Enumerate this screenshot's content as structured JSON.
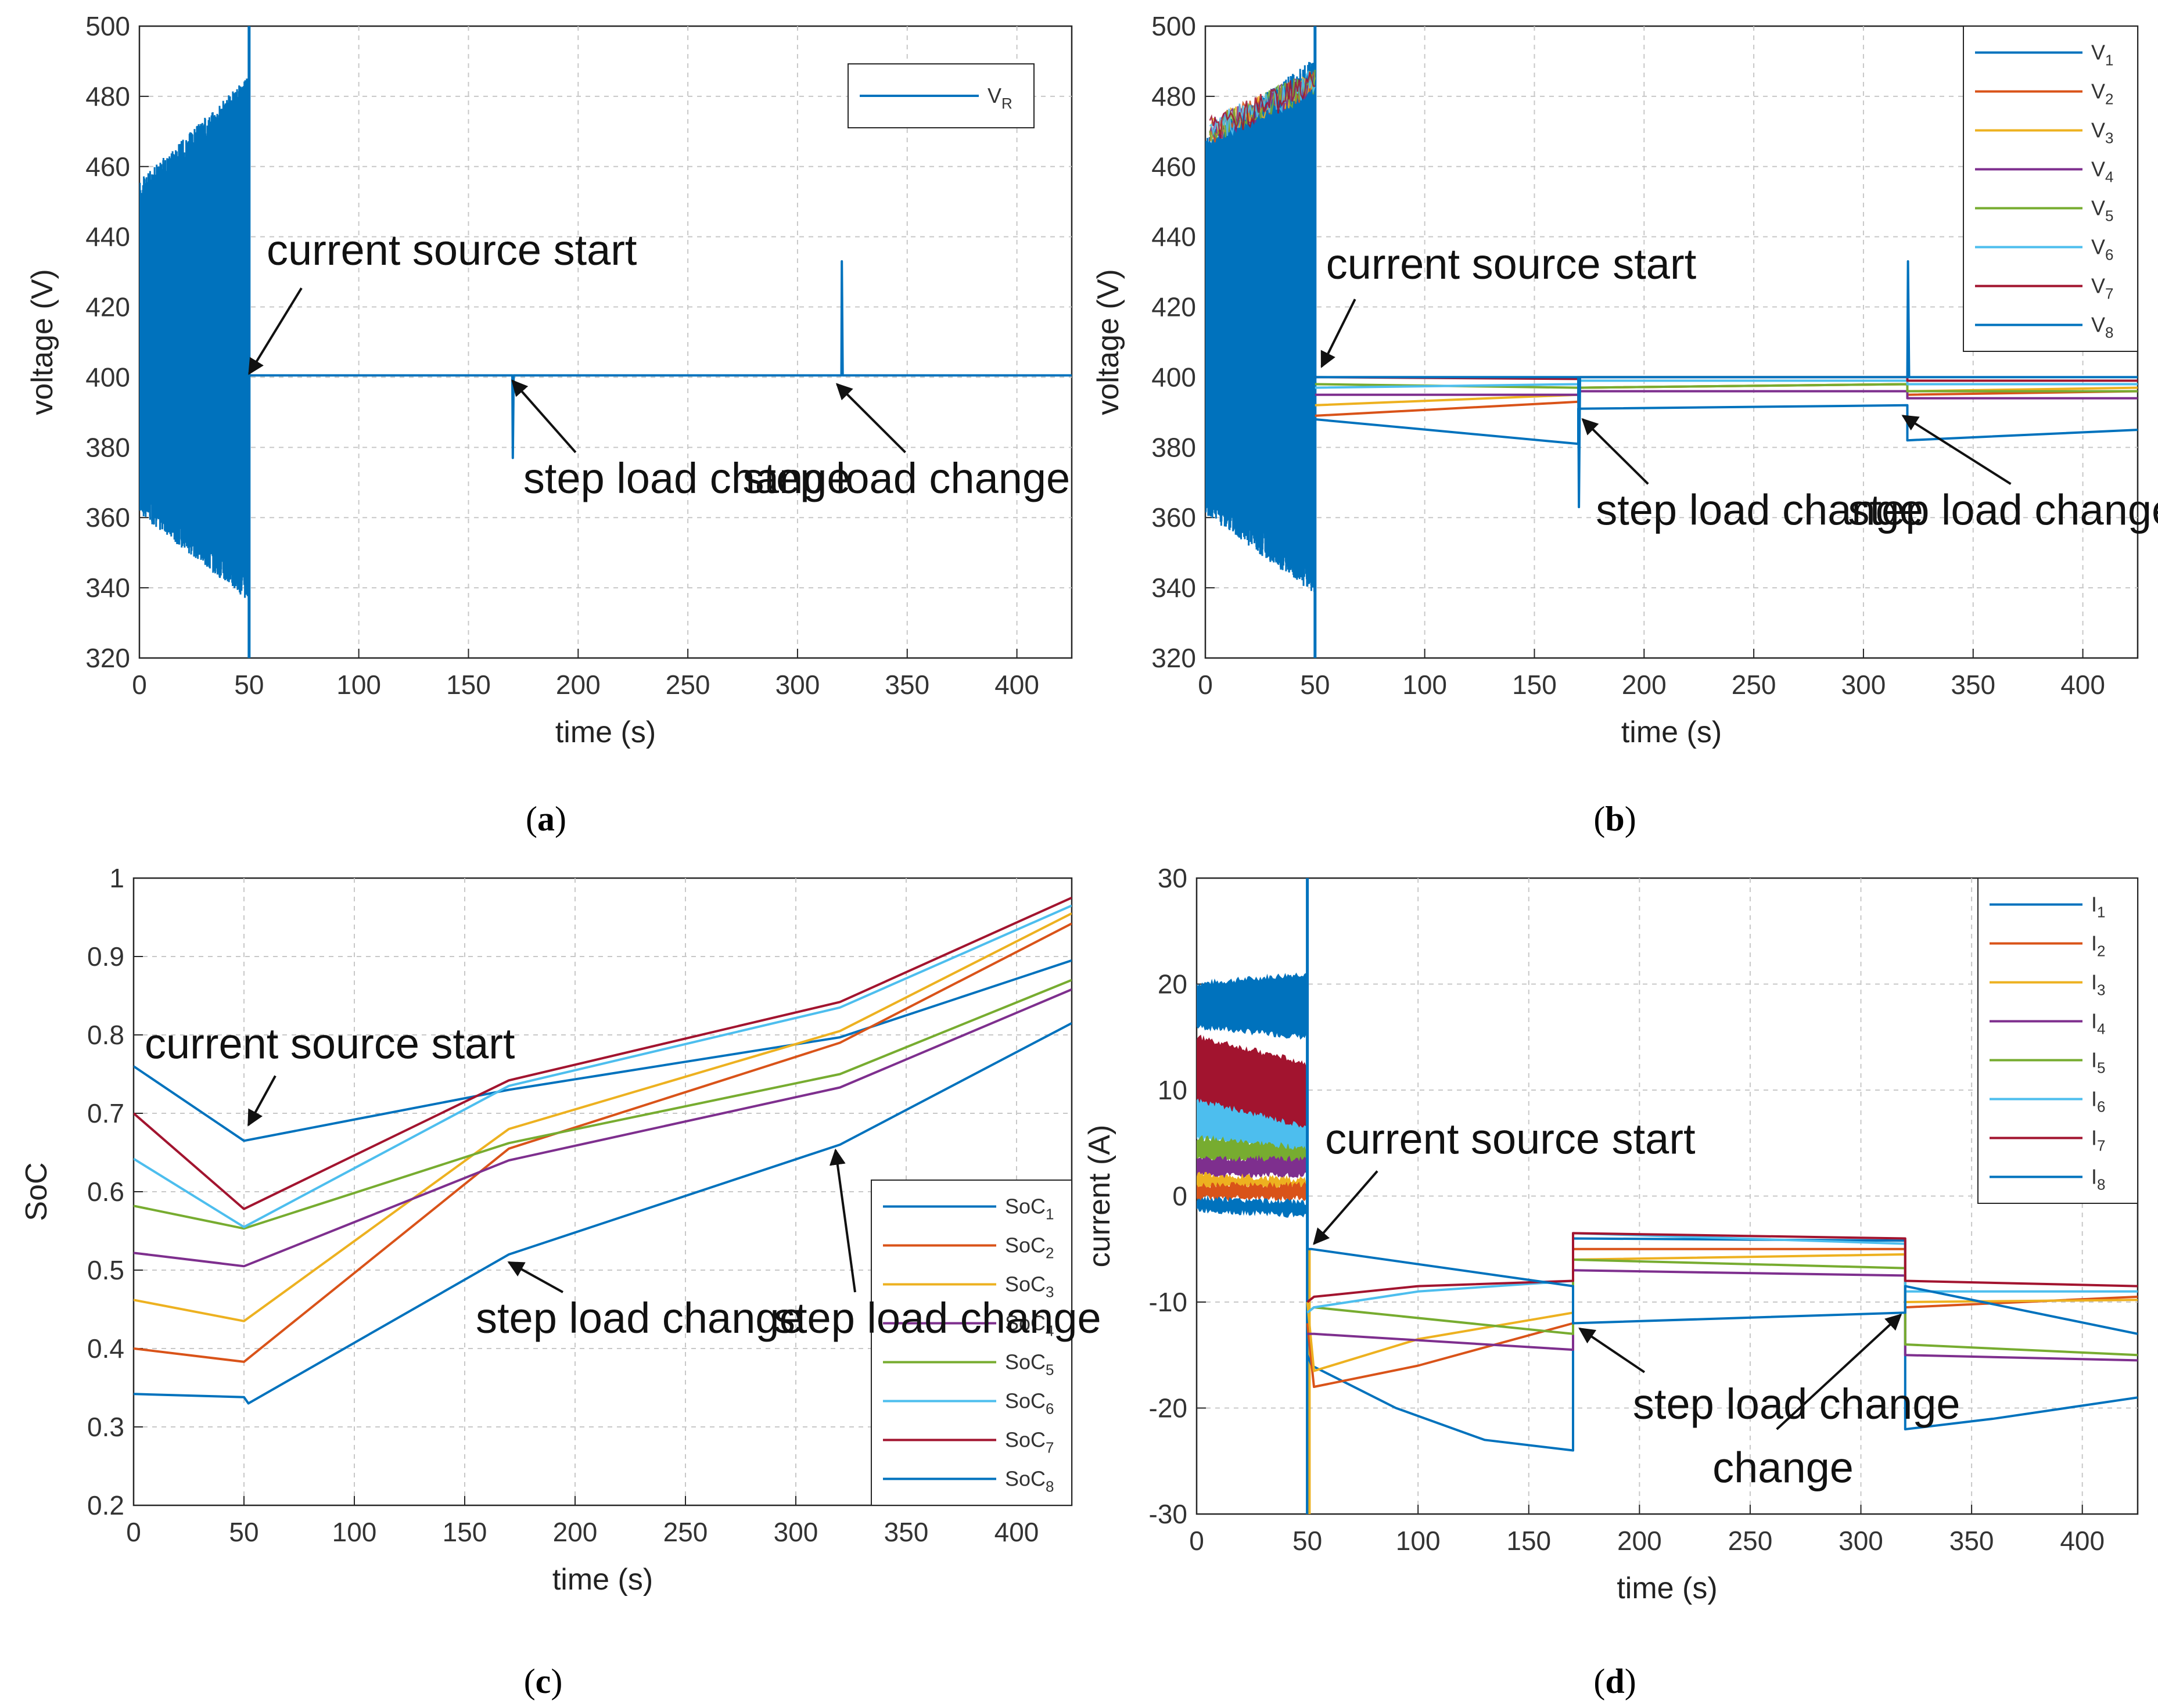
{
  "colors": {
    "c1": "#0072BD",
    "c2": "#D95319",
    "c3": "#EDB120",
    "c4": "#7E2F8E",
    "c5": "#77AC30",
    "c6": "#4DBEEE",
    "c7": "#A2142F",
    "c8": "#0072BD"
  },
  "chart_data": [
    {
      "id": "a",
      "caption": "a",
      "type": "line",
      "xlabel": "time (s)",
      "ylabel": "voltage (V)",
      "xlim": [
        0,
        425
      ],
      "ylim": [
        320,
        500
      ],
      "xticks": [
        0,
        50,
        100,
        150,
        200,
        250,
        300,
        350,
        400
      ],
      "yticks": [
        320,
        340,
        360,
        380,
        400,
        420,
        440,
        460,
        480,
        500
      ],
      "grid": true,
      "legend_position": "top-right",
      "series": [
        {
          "name": "V",
          "sub": "R",
          "color": "#0072BD",
          "x": [
            0,
            50,
            50.5,
            170,
            170.2,
            170.6,
            320,
            320.2,
            320.6,
            425
          ],
          "y": [
            400,
            400,
            400.5,
            400.5,
            377,
            400.5,
            400.5,
            433,
            400.5,
            400.5
          ]
        }
      ],
      "oscillation": {
        "x_start": 0,
        "x_end": 50,
        "upper_start": 452,
        "upper_end": 482,
        "lower_start": 365,
        "lower_end": 340,
        "spike_max": 500,
        "spike_min": 320,
        "color": "#0072BD"
      },
      "annotations": [
        {
          "text": "current source start",
          "x": 58,
          "y": 432,
          "arrow_x": 50,
          "arrow_y": 401
        },
        {
          "text": "step load change",
          "x": 175,
          "y": 367,
          "arrow_x": 170,
          "arrow_y": 399
        },
        {
          "text": "step load change",
          "x": 275,
          "y": 367,
          "arrow_x": 318,
          "arrow_y": 398
        }
      ]
    },
    {
      "id": "b",
      "caption": "b",
      "type": "line",
      "xlabel": "time (s)",
      "ylabel": "voltage (V)",
      "xlim": [
        0,
        425
      ],
      "ylim": [
        320,
        500
      ],
      "xticks": [
        0,
        50,
        100,
        150,
        200,
        250,
        300,
        350,
        400
      ],
      "yticks": [
        320,
        340,
        360,
        380,
        400,
        420,
        440,
        460,
        480,
        500
      ],
      "grid": true,
      "legend_position": "top-right",
      "series": [
        {
          "name": "V",
          "sub": "1",
          "color": "#0072BD",
          "x": [
            50,
            170,
            170,
            320,
            320,
            425
          ],
          "y": [
            388,
            381,
            391,
            392,
            382,
            385
          ]
        },
        {
          "name": "V",
          "sub": "2",
          "color": "#D95319",
          "x": [
            50,
            170,
            170,
            320,
            320,
            425
          ],
          "y": [
            389,
            393,
            397,
            398,
            395,
            396
          ]
        },
        {
          "name": "V",
          "sub": "3",
          "color": "#EDB120",
          "x": [
            50,
            170,
            170,
            320,
            320,
            425
          ],
          "y": [
            392,
            395,
            397,
            398,
            396,
            397
          ]
        },
        {
          "name": "V",
          "sub": "4",
          "color": "#7E2F8E",
          "x": [
            50,
            170,
            170,
            320,
            320,
            425
          ],
          "y": [
            395,
            395,
            396,
            396,
            394,
            394
          ]
        },
        {
          "name": "V",
          "sub": "5",
          "color": "#77AC30",
          "x": [
            50,
            170,
            170,
            320,
            320,
            425
          ],
          "y": [
            398,
            397,
            397,
            398,
            396,
            396
          ]
        },
        {
          "name": "V",
          "sub": "6",
          "color": "#4DBEEE",
          "x": [
            50,
            170,
            170,
            320,
            320,
            425
          ],
          "y": [
            397,
            398,
            399,
            399,
            398,
            398
          ]
        },
        {
          "name": "V",
          "sub": "7",
          "color": "#A2142F",
          "x": [
            50,
            170,
            170,
            320,
            320,
            425
          ],
          "y": [
            400,
            399.5,
            400,
            400,
            399,
            399
          ]
        },
        {
          "name": "V",
          "sub": "8",
          "color": "#0072BD",
          "x": [
            50,
            170,
            170.3,
            170.8,
            320,
            320.3,
            320.8,
            425
          ],
          "y": [
            400,
            400,
            363,
            400,
            400,
            433,
            400,
            400
          ]
        }
      ],
      "oscillation": {
        "x_start": 0,
        "x_end": 50,
        "upper_start": 465,
        "upper_end": 487,
        "lower_start": 365,
        "lower_end": 342,
        "spike_max": 500,
        "spike_min": 320,
        "color": "#0072BD"
      },
      "annotations": [
        {
          "text": "current source start",
          "x": 55,
          "y": 428,
          "arrow_x": 53,
          "arrow_y": 403
        },
        {
          "text": "step load change",
          "x": 178,
          "y": 358,
          "arrow_x": 172,
          "arrow_y": 388
        },
        {
          "text": "step load change",
          "x": 293,
          "y": 358,
          "arrow_x": 318,
          "arrow_y": 389
        }
      ]
    },
    {
      "id": "c",
      "caption": "c",
      "type": "line",
      "xlabel": "time (s)",
      "ylabel": "SoC",
      "xlim": [
        0,
        425
      ],
      "ylim": [
        0.2,
        1
      ],
      "xticks": [
        0,
        50,
        100,
        150,
        200,
        250,
        300,
        350,
        400
      ],
      "yticks": [
        0.2,
        0.3,
        0.4,
        0.5,
        0.6,
        0.7,
        0.8,
        0.9,
        1
      ],
      "ytick_labels": [
        "0.2",
        "0.3",
        "0.4",
        "0.5",
        "0.6",
        "0.7",
        "0.8",
        "0.9",
        "1"
      ],
      "grid": true,
      "legend_position": "bottom-right",
      "series": [
        {
          "name": "SoC",
          "sub": "1",
          "color": "#0072BD",
          "x": [
            0,
            50,
            170,
            320,
            425
          ],
          "y": [
            0.76,
            0.665,
            0.73,
            0.797,
            0.895
          ]
        },
        {
          "name": "SoC",
          "sub": "2",
          "color": "#D95319",
          "x": [
            0,
            50,
            170,
            320,
            425
          ],
          "y": [
            0.4,
            0.383,
            0.655,
            0.79,
            0.942
          ]
        },
        {
          "name": "SoC",
          "sub": "3",
          "color": "#EDB120",
          "x": [
            0,
            50,
            170,
            320,
            425
          ],
          "y": [
            0.462,
            0.435,
            0.68,
            0.805,
            0.955
          ]
        },
        {
          "name": "SoC",
          "sub": "4",
          "color": "#7E2F8E",
          "x": [
            0,
            50,
            170,
            320,
            425
          ],
          "y": [
            0.522,
            0.505,
            0.64,
            0.733,
            0.858
          ]
        },
        {
          "name": "SoC",
          "sub": "5",
          "color": "#77AC30",
          "x": [
            0,
            50,
            170,
            320,
            425
          ],
          "y": [
            0.582,
            0.553,
            0.662,
            0.75,
            0.87
          ]
        },
        {
          "name": "SoC",
          "sub": "6",
          "color": "#4DBEEE",
          "x": [
            0,
            50,
            170,
            320,
            425
          ],
          "y": [
            0.642,
            0.555,
            0.735,
            0.835,
            0.965
          ]
        },
        {
          "name": "SoC",
          "sub": "7",
          "color": "#A2142F",
          "x": [
            0,
            50,
            170,
            320,
            425
          ],
          "y": [
            0.7,
            0.578,
            0.742,
            0.842,
            0.975
          ]
        },
        {
          "name": "SoC",
          "sub": "8",
          "color": "#0072BD",
          "x": [
            0,
            50,
            52,
            170,
            320,
            425
          ],
          "y": [
            0.342,
            0.338,
            0.33,
            0.52,
            0.66,
            0.815
          ]
        }
      ],
      "annotations": [
        {
          "text": "current source start",
          "x": 5,
          "y": 0.77,
          "arrow_x": 52,
          "arrow_y": 0.685
        },
        {
          "text": "step load change",
          "x": 155,
          "y": 0.42,
          "arrow_x": 170,
          "arrow_y": 0.51
        },
        {
          "text": "step load change",
          "x": 290,
          "y": 0.42,
          "arrow_x": 318,
          "arrow_y": 0.653
        }
      ]
    },
    {
      "id": "d",
      "caption": "d",
      "type": "line",
      "xlabel": "time (s)",
      "ylabel": "current (A)",
      "xlim": [
        0,
        425
      ],
      "ylim": [
        -30,
        30
      ],
      "xticks": [
        0,
        50,
        100,
        150,
        200,
        250,
        300,
        350,
        400
      ],
      "yticks": [
        -30,
        -20,
        -10,
        0,
        10,
        20,
        30
      ],
      "grid": true,
      "legend_position": "top-right",
      "series": [
        {
          "name": "I",
          "sub": "1",
          "color": "#0072BD",
          "x": [
            50,
            52,
            90,
            130,
            170,
            170,
            320,
            320,
            360,
            425
          ],
          "y": [
            -15,
            -16,
            -20,
            -23,
            -24,
            -4,
            -4.2,
            -22,
            -21,
            -19
          ]
        },
        {
          "name": "I",
          "sub": "2",
          "color": "#D95319",
          "x": [
            50,
            53,
            100,
            170,
            170,
            320,
            320,
            425
          ],
          "y": [
            -12,
            -18,
            -16,
            -12,
            -5,
            -5,
            -10.5,
            -9.5
          ]
        },
        {
          "name": "I",
          "sub": "3",
          "color": "#EDB120",
          "x": [
            50,
            53,
            100,
            170,
            170,
            320,
            320,
            425
          ],
          "y": [
            -10,
            -16.5,
            -13.5,
            -11,
            -6,
            -5.5,
            -10,
            -9.8
          ]
        },
        {
          "name": "I",
          "sub": "4",
          "color": "#7E2F8E",
          "x": [
            50,
            53,
            170,
            170,
            320,
            320,
            425
          ],
          "y": [
            -13,
            -13,
            -14.5,
            -7,
            -7.5,
            -15,
            -15.5
          ]
        },
        {
          "name": "I",
          "sub": "5",
          "color": "#77AC30",
          "x": [
            50,
            53,
            170,
            170,
            320,
            320,
            425
          ],
          "y": [
            -11,
            -10.5,
            -13,
            -6,
            -6.8,
            -14,
            -15
          ]
        },
        {
          "name": "I",
          "sub": "6",
          "color": "#4DBEEE",
          "x": [
            50,
            53,
            100,
            170,
            170,
            320,
            320,
            425
          ],
          "y": [
            -11,
            -10.5,
            -9,
            -8,
            -3.5,
            -4.5,
            -9,
            -9
          ]
        },
        {
          "name": "I",
          "sub": "7",
          "color": "#A2142F",
          "x": [
            50,
            53,
            100,
            170,
            170,
            320,
            320,
            425
          ],
          "y": [
            -10,
            -9.5,
            -8.5,
            -8,
            -3.5,
            -4,
            -8,
            -8.5
          ]
        },
        {
          "name": "I",
          "sub": "8",
          "color": "#0072BD",
          "x": [
            50,
            52,
            170,
            170,
            320,
            320,
            425
          ],
          "y": [
            -5,
            -5,
            -8.5,
            -12,
            -11,
            -8.5,
            -13
          ]
        }
      ],
      "bands": [
        {
          "color": "#0072BD",
          "x_start": 0,
          "x_end": 50,
          "top_start": 20,
          "top_end": 21,
          "bottom_start": 16,
          "bottom_end": 15
        },
        {
          "color": "#A2142F",
          "x_start": 0,
          "x_end": 50,
          "top_start": 15,
          "top_end": 12.5,
          "bottom_start": 9,
          "bottom_end": 5
        },
        {
          "color": "#4DBEEE",
          "x_start": 0,
          "x_end": 50,
          "top_start": 9,
          "top_end": 6.5,
          "bottom_start": 5.5,
          "bottom_end": 4
        },
        {
          "color": "#77AC30",
          "x_start": 0,
          "x_end": 50,
          "top_start": 5.5,
          "top_end": 4.5,
          "bottom_start": 3.5,
          "bottom_end": 3
        },
        {
          "color": "#7E2F8E",
          "x_start": 0,
          "x_end": 50,
          "top_start": 3.5,
          "top_end": 3.5,
          "bottom_start": 2,
          "bottom_end": 2
        },
        {
          "color": "#EDB120",
          "x_start": 0,
          "x_end": 50,
          "top_start": 2,
          "top_end": 1.5,
          "bottom_start": 0.8,
          "bottom_end": 0.8
        },
        {
          "color": "#D95319",
          "x_start": 0,
          "x_end": 50,
          "top_start": 1,
          "top_end": 1,
          "bottom_start": -0.2,
          "bottom_end": -0.2
        },
        {
          "color": "#0072BD",
          "x_start": 0,
          "x_end": 50,
          "top_start": -0.3,
          "top_end": -0.6,
          "bottom_start": -1.3,
          "bottom_end": -1.8
        }
      ],
      "spike": {
        "x": 50,
        "max": 30,
        "min": -30
      },
      "annotations": [
        {
          "text": "current source start",
          "x": 58,
          "y": 4,
          "arrow_x": 53,
          "arrow_y": -4.5
        },
        {
          "text": "step load change",
          "x": 197,
          "y": -21,
          "arrow_x": 173,
          "arrow_y": -12.5
        },
        {
          "text": "change",
          "x": 233,
          "y": -27,
          "arrow_x": null,
          "arrow_y": null
        },
        {
          "text": "",
          "x": 262,
          "y": -22,
          "arrow_x": 318,
          "arrow_y": -11.2
        }
      ]
    }
  ]
}
